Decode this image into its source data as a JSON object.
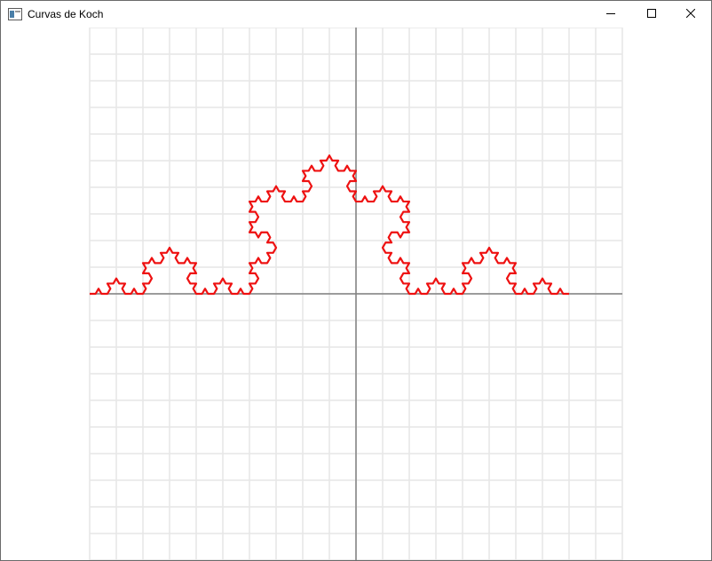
{
  "window": {
    "title": "Curvas de Koch",
    "icon": "app-window-icon"
  },
  "caption_buttons": {
    "minimize_icon": "minimize-icon",
    "maximize_icon": "maximize-icon",
    "close_icon": "close-icon"
  },
  "plot": {
    "grid": true,
    "x_range": [
      -10,
      10
    ],
    "y_range": [
      -10,
      10
    ],
    "curve": {
      "type": "Koch curve",
      "color": "#ee1111",
      "iterations": 4,
      "start": [
        -10,
        0
      ],
      "end": [
        8,
        0
      ]
    },
    "colors": {
      "grid": "#e6e6e6",
      "axes": "#808080"
    }
  }
}
